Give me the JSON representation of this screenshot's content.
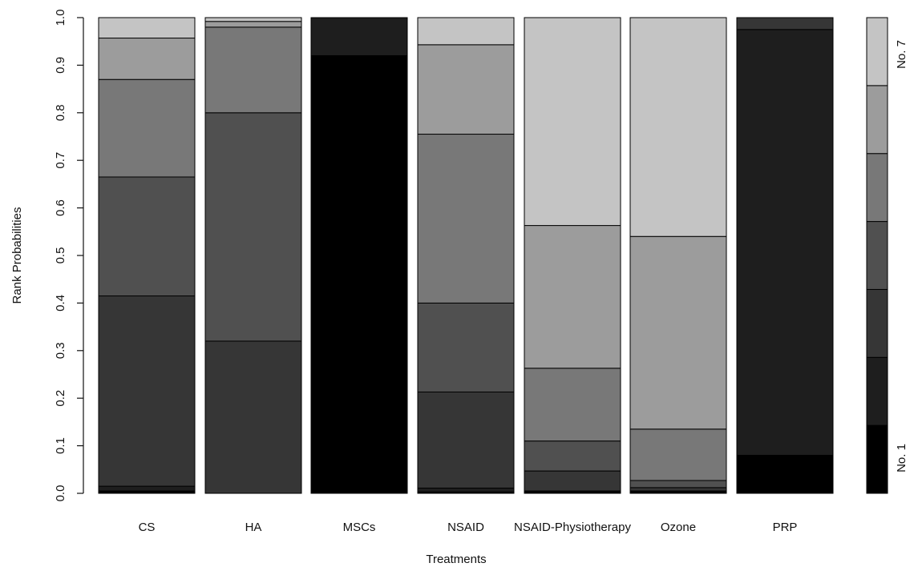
{
  "chart_data": {
    "type": "bar",
    "stacked": true,
    "xlabel": "Treatments",
    "ylabel": "Rank Probabilities",
    "ylim": [
      0,
      1
    ],
    "yticks": [
      "0.0",
      "0.1",
      "0.2",
      "0.3",
      "0.4",
      "0.5",
      "0.6",
      "0.7",
      "0.8",
      "0.9",
      "1.0"
    ],
    "categories": [
      "CS",
      "HA",
      "MSCs",
      "NSAID",
      "NSAID-Physiotherapy",
      "Ozone",
      "PRP"
    ],
    "series": [
      {
        "values": [
          0.005,
          0.0,
          0.92,
          0.003,
          0.003,
          0.003,
          0.08
        ]
      },
      {
        "values": [
          0.01,
          0.0,
          0.08,
          0.008,
          0.002,
          0.002,
          0.895
        ]
      },
      {
        "values": [
          0.4,
          0.32,
          0.0,
          0.202,
          0.042,
          0.007,
          0.025
        ]
      },
      {
        "values": [
          0.25,
          0.48,
          0.0,
          0.187,
          0.063,
          0.015,
          0.0
        ]
      },
      {
        "values": [
          0.205,
          0.18,
          0.0,
          0.355,
          0.153,
          0.108,
          0.0
        ]
      },
      {
        "values": [
          0.087,
          0.012,
          0.0,
          0.188,
          0.3,
          0.405,
          0.0
        ]
      },
      {
        "values": [
          0.043,
          0.008,
          0.0,
          0.057,
          0.437,
          0.46,
          0.0
        ]
      }
    ],
    "colors": [
      "#000000",
      "#1e1e1e",
      "#363636",
      "#505050",
      "#787878",
      "#9c9c9c",
      "#c4c4c4"
    ],
    "legend": {
      "position": "right",
      "top_label": "No. 7",
      "bottom_label": "No. 1"
    }
  }
}
